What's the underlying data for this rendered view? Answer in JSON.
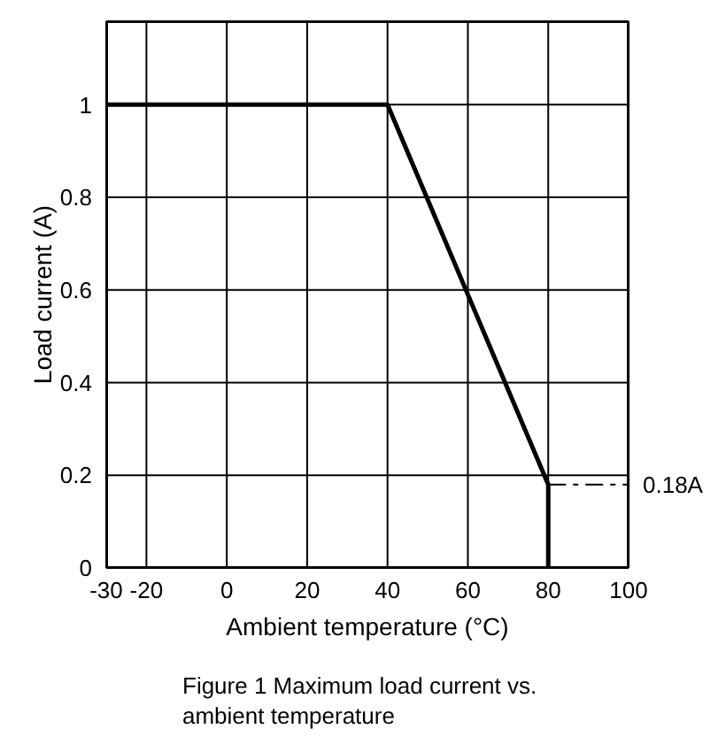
{
  "chart_data": {
    "type": "line",
    "title": "Figure 1  Maximum load current vs. ambient temperature",
    "xlabel": "Ambient temperature (°C)",
    "ylabel": "Load current (A)",
    "x": [
      -30,
      40,
      80,
      80
    ],
    "series": [
      {
        "color": "#000000",
        "values": [
          1,
          1,
          0.18,
          0
        ]
      }
    ],
    "xlim": [
      -30,
      100
    ],
    "xticks": [
      -30,
      -20,
      0,
      20,
      40,
      60,
      80,
      100
    ],
    "ylim": [
      0,
      1.18
    ],
    "yticks": [
      0,
      0.2,
      0.4,
      0.6,
      0.8,
      1
    ],
    "grid": true,
    "marker": "none",
    "line_style": "solid",
    "annotations": [
      "0.18A"
    ]
  }
}
